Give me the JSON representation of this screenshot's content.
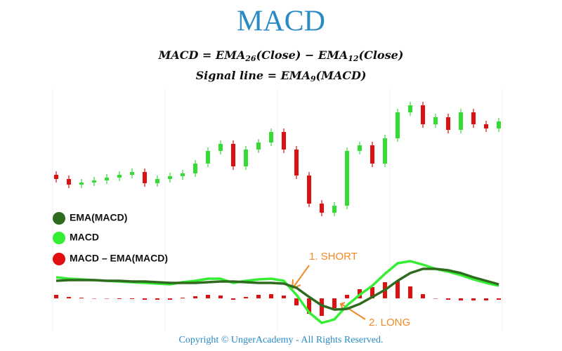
{
  "title": "MACD",
  "formulas": [
    [
      "MACD = EMA",
      "26",
      "(Close) − EMA",
      "12",
      "(Close)"
    ],
    [
      "Signal line = EMA",
      "9",
      "(MACD)"
    ]
  ],
  "annotations": [
    "1. SHORT",
    "2. LONG"
  ],
  "footer": "Copyright © UngerAcademy - All Rights Reserved.",
  "chart_data": [
    {
      "type": "candlestick",
      "ylim": [
        0,
        195
      ],
      "up_color": "#33dd33",
      "down_color": "#dd1111",
      "open": [
        76,
        70,
        62,
        65,
        68,
        72,
        76,
        80,
        64,
        70,
        74,
        78,
        92,
        110,
        120,
        88,
        112,
        122,
        137,
        112,
        75,
        35,
        22,
        32,
        110,
        118,
        92,
        128,
        165,
        175,
        148,
        158,
        140,
        165,
        148,
        142
      ],
      "high": [
        81,
        75,
        70,
        73,
        77,
        81,
        85,
        85,
        75,
        79,
        83,
        97,
        115,
        125,
        125,
        117,
        127,
        142,
        142,
        117,
        80,
        40,
        37,
        115,
        123,
        123,
        133,
        170,
        180,
        180,
        163,
        163,
        170,
        170,
        153,
        157
      ],
      "low": [
        65,
        57,
        57,
        60,
        63,
        67,
        71,
        59,
        59,
        65,
        69,
        73,
        87,
        105,
        83,
        83,
        107,
        117,
        107,
        70,
        30,
        17,
        17,
        27,
        105,
        87,
        87,
        123,
        160,
        143,
        143,
        135,
        135,
        143,
        137,
        137
      ],
      "close": [
        70,
        62,
        65,
        68,
        72,
        76,
        80,
        64,
        70,
        74,
        78,
        92,
        110,
        120,
        88,
        112,
        122,
        137,
        112,
        75,
        35,
        22,
        32,
        110,
        118,
        92,
        128,
        165,
        175,
        148,
        158,
        140,
        165,
        148,
        142,
        152
      ]
    },
    {
      "type": "macd",
      "ylim": [
        -45,
        55
      ],
      "series": [
        {
          "name": "EMA(MACD)",
          "color": "#2e6b1f",
          "values": [
            25,
            26,
            26,
            26,
            25,
            25,
            24,
            24,
            23,
            22,
            22,
            22,
            23,
            24,
            24,
            23,
            22,
            22,
            21,
            15,
            2,
            -10,
            -16,
            -15,
            -8,
            2,
            12,
            25,
            36,
            42,
            42,
            40,
            36,
            30,
            25,
            20
          ]
        },
        {
          "name": "MACD",
          "color": "#33ee33",
          "values": [
            30,
            28,
            27,
            26,
            25,
            24,
            23,
            22,
            21,
            20,
            23,
            25,
            28,
            28,
            22,
            25,
            27,
            28,
            25,
            5,
            -20,
            -35,
            -30,
            -10,
            5,
            18,
            35,
            50,
            53,
            48,
            42,
            38,
            33,
            27,
            22,
            18
          ]
        },
        {
          "name": "MACD – EMA(MACD)",
          "color": "#e01010",
          "values": [
            5,
            2,
            1,
            0,
            0,
            -1,
            -1,
            -2,
            -2,
            -2,
            1,
            3,
            5,
            4,
            -2,
            2,
            5,
            6,
            4,
            -10,
            -22,
            -25,
            -14,
            5,
            13,
            16,
            23,
            25,
            17,
            6,
            0,
            -2,
            -3,
            -3,
            -3,
            -2
          ]
        }
      ]
    }
  ]
}
